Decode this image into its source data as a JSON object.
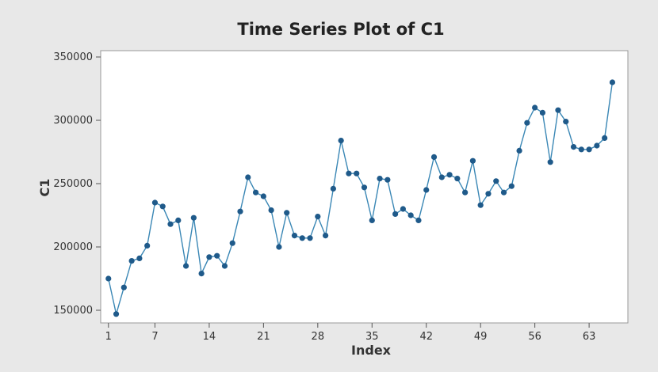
{
  "chart_data": {
    "type": "line",
    "title": "Time Series Plot of C1",
    "xlabel": "Index",
    "ylabel": "C1",
    "xlim": [
      0,
      68
    ],
    "ylim": [
      140000,
      355000
    ],
    "x_ticks": [
      1,
      7,
      14,
      21,
      28,
      35,
      42,
      49,
      56,
      63
    ],
    "y_ticks": [
      150000,
      200000,
      250000,
      300000,
      350000
    ],
    "y_tick_labels": [
      "150000",
      "200000",
      "250000",
      "300000",
      "350000"
    ],
    "grid": false,
    "legend": "none",
    "colors": {
      "line": "#3a87b5",
      "marker": "#1f5a8a",
      "plot_bg": "#ffffff",
      "frame": "#e8e8e8"
    },
    "series": [
      {
        "x": [
          1,
          2,
          3,
          4,
          5,
          6,
          7,
          8,
          9,
          10,
          11,
          12,
          13,
          14,
          15,
          16,
          17,
          18,
          19,
          20,
          21,
          22,
          23,
          24,
          25,
          26,
          27,
          28,
          29,
          30,
          31,
          32,
          33,
          34,
          35,
          36,
          37,
          38,
          39,
          40,
          41,
          42,
          43,
          44,
          45,
          46,
          47,
          48,
          49,
          50,
          51,
          52,
          53,
          54,
          55,
          56,
          57,
          58,
          59,
          60,
          61,
          62,
          63,
          64,
          65,
          66
        ],
        "values": [
          175000,
          147000,
          168000,
          189000,
          191000,
          201000,
          235000,
          232000,
          218000,
          221000,
          185000,
          223000,
          179000,
          192000,
          193000,
          185000,
          203000,
          228000,
          255000,
          243000,
          240000,
          229000,
          200000,
          227000,
          209000,
          207000,
          207000,
          224000,
          209000,
          246000,
          284000,
          258000,
          258000,
          247000,
          221000,
          254000,
          253000,
          226000,
          230000,
          225000,
          221000,
          245000,
          271000,
          255000,
          257000,
          254000,
          243000,
          268000,
          233000,
          242000,
          252000,
          243000,
          248000,
          276000,
          298000,
          310000,
          306000,
          267000,
          308000,
          299000,
          279000,
          277000,
          277000,
          280000,
          286000,
          330000
        ]
      }
    ]
  }
}
